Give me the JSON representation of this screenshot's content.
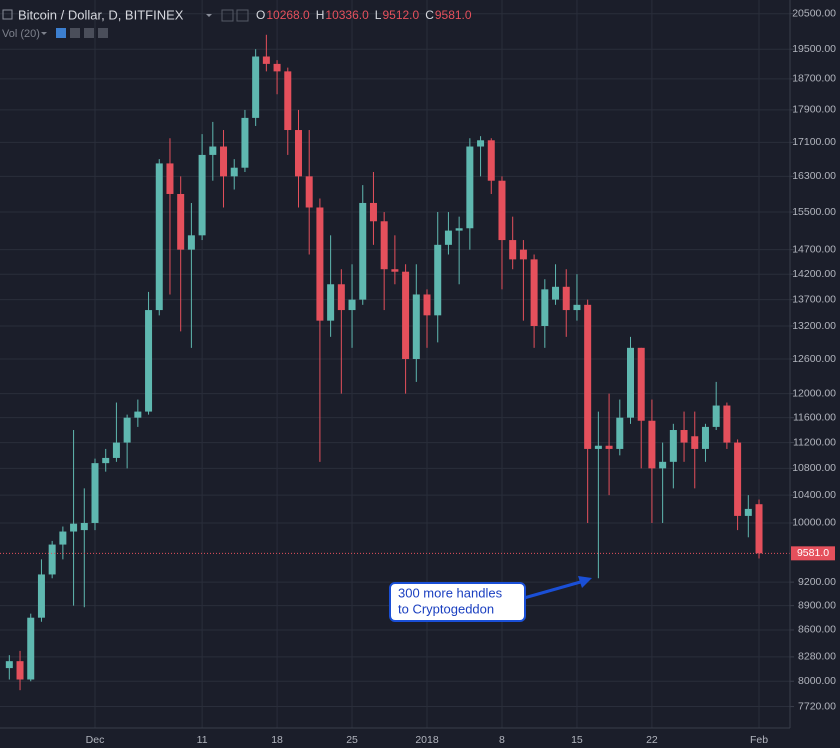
{
  "chart_data": {
    "type": "candlestick",
    "title": "Bitcoin / Dollar, D, BITFINEX",
    "ohlc_header": [
      {
        "key": "O",
        "value": "10268.0"
      },
      {
        "key": "H",
        "value": "10336.0"
      },
      {
        "key": "L",
        "value": "9512.0"
      },
      {
        "key": "C",
        "value": "9581.0"
      }
    ],
    "indicator": "Vol (20)",
    "categories": [
      null,
      null,
      null,
      null,
      null,
      null,
      null,
      null,
      "Dec",
      null,
      null,
      null,
      null,
      null,
      null,
      null,
      null,
      null,
      "11",
      null,
      null,
      null,
      null,
      null,
      null,
      "18",
      null,
      null,
      null,
      null,
      null,
      null,
      "25",
      null,
      null,
      null,
      null,
      null,
      null,
      "2018",
      null,
      null,
      null,
      null,
      null,
      null,
      "8",
      null,
      null,
      null,
      null,
      null,
      null,
      "15",
      null,
      null,
      null,
      null,
      null,
      null,
      "22",
      null,
      null,
      null,
      null,
      null,
      null,
      null,
      null,
      null,
      "Feb"
    ],
    "series": {
      "open": [
        8150,
        8230,
        8020,
        8750,
        9300,
        9700,
        9880,
        9900,
        10000,
        10880,
        10960,
        11200,
        11600,
        11700,
        13500,
        16600,
        15900,
        14700,
        15000,
        16800,
        17000,
        16300,
        16500,
        17700,
        19300,
        19100,
        18900,
        17400,
        16300,
        15600,
        13300,
        14000,
        13500,
        13700,
        15700,
        15300,
        14300,
        14250,
        12600,
        13800,
        13400,
        14800,
        15100,
        15150,
        17000,
        17150,
        16200,
        14900,
        14700,
        14500,
        13200,
        13700,
        13950,
        13500,
        13600,
        11100,
        11150,
        11100,
        11600,
        12800,
        11550,
        10800,
        10900,
        11400,
        11300,
        11100,
        11450,
        11800,
        11200,
        10100,
        10268
      ],
      "high": [
        8300,
        8350,
        8800,
        9500,
        9750,
        9950,
        11400,
        10500,
        10950,
        11100,
        11850,
        11650,
        11900,
        13850,
        16700,
        17200,
        16300,
        15700,
        17300,
        17600,
        17400,
        16700,
        17900,
        19500,
        19900,
        19200,
        19000,
        17900,
        17400,
        15800,
        15000,
        14300,
        14400,
        16100,
        16400,
        15500,
        15000,
        14400,
        14400,
        13900,
        15500,
        15500,
        15400,
        17200,
        17250,
        17200,
        16300,
        15400,
        14900,
        14600,
        14100,
        14400,
        14300,
        14200,
        13700,
        11700,
        12000,
        11900,
        13000,
        12800,
        11900,
        11200,
        11500,
        11700,
        11700,
        11500,
        12200,
        11850,
        11250,
        10400,
        10336
      ],
      "low": [
        8020,
        7900,
        8000,
        8700,
        9250,
        9500,
        8900,
        8880,
        9900,
        10750,
        10900,
        10800,
        11450,
        11650,
        13400,
        13800,
        13100,
        12800,
        14900,
        16200,
        15600,
        16000,
        16400,
        17500,
        18900,
        18300,
        16800,
        15600,
        14600,
        10900,
        13000,
        12000,
        12800,
        13600,
        14800,
        13500,
        14000,
        12000,
        12200,
        12800,
        12900,
        14600,
        14000,
        14700,
        16300,
        15900,
        13900,
        14300,
        13300,
        12800,
        12800,
        13600,
        13000,
        13300,
        10000,
        9250,
        10400,
        11000,
        11500,
        10800,
        10000,
        10000,
        10500,
        10900,
        10500,
        10900,
        11400,
        11100,
        9900,
        9800,
        9512
      ],
      "close": [
        8230,
        8020,
        8750,
        9300,
        9700,
        9880,
        9990,
        10000,
        10880,
        10960,
        11200,
        11600,
        11700,
        13500,
        16600,
        15900,
        14700,
        15000,
        16800,
        17000,
        16300,
        16500,
        17700,
        19300,
        19100,
        18900,
        17400,
        16300,
        15600,
        13300,
        14000,
        13500,
        13700,
        15700,
        15300,
        14300,
        14250,
        12600,
        13800,
        13400,
        14800,
        15100,
        15150,
        17000,
        17150,
        16200,
        14900,
        14500,
        14500,
        13200,
        13900,
        13950,
        13500,
        13600,
        11100,
        11150,
        11100,
        11600,
        12800,
        11550,
        10800,
        10900,
        11400,
        11200,
        11100,
        11450,
        11800,
        11200,
        10100,
        10200,
        9581
      ]
    },
    "up_color": "#5fb8b0",
    "down_color": "#e5505c",
    "last_price_label": "9581.0",
    "log_scale": true,
    "grid": true,
    "ylim": [
      7490,
      20900
    ],
    "yticks": [
      {
        "value": 20500,
        "label": "20500.00"
      },
      {
        "value": 19500,
        "label": "19500.00"
      },
      {
        "value": 18700,
        "label": "18700.00"
      },
      {
        "value": 17900,
        "label": "17900.00"
      },
      {
        "value": 17100,
        "label": "17100.00"
      },
      {
        "value": 16300,
        "label": "16300.00"
      },
      {
        "value": 15500,
        "label": "15500.00"
      },
      {
        "value": 14700,
        "label": "14700.00"
      },
      {
        "value": 14200,
        "label": "14200.00"
      },
      {
        "value": 13700,
        "label": "13700.00"
      },
      {
        "value": 13200,
        "label": "13200.00"
      },
      {
        "value": 12600,
        "label": "12600.00"
      },
      {
        "value": 12000,
        "label": "12000.00"
      },
      {
        "value": 11600,
        "label": "11600.00"
      },
      {
        "value": 11200,
        "label": "11200.00"
      },
      {
        "value": 10800,
        "label": "10800.00"
      },
      {
        "value": 10400,
        "label": "10400.00"
      },
      {
        "value": 10000,
        "label": "10000.00"
      },
      {
        "value": 9200,
        "label": "9200.00"
      },
      {
        "value": 8900,
        "label": "8900.00"
      },
      {
        "value": 8600,
        "label": "8600.00"
      },
      {
        "value": 8280,
        "label": "8280.00"
      },
      {
        "value": 8000,
        "label": "8000.00"
      },
      {
        "value": 7720,
        "label": "7720.00"
      }
    ],
    "annotation": {
      "lines": [
        "300 more handles",
        "to Cryptogeddon"
      ]
    }
  }
}
